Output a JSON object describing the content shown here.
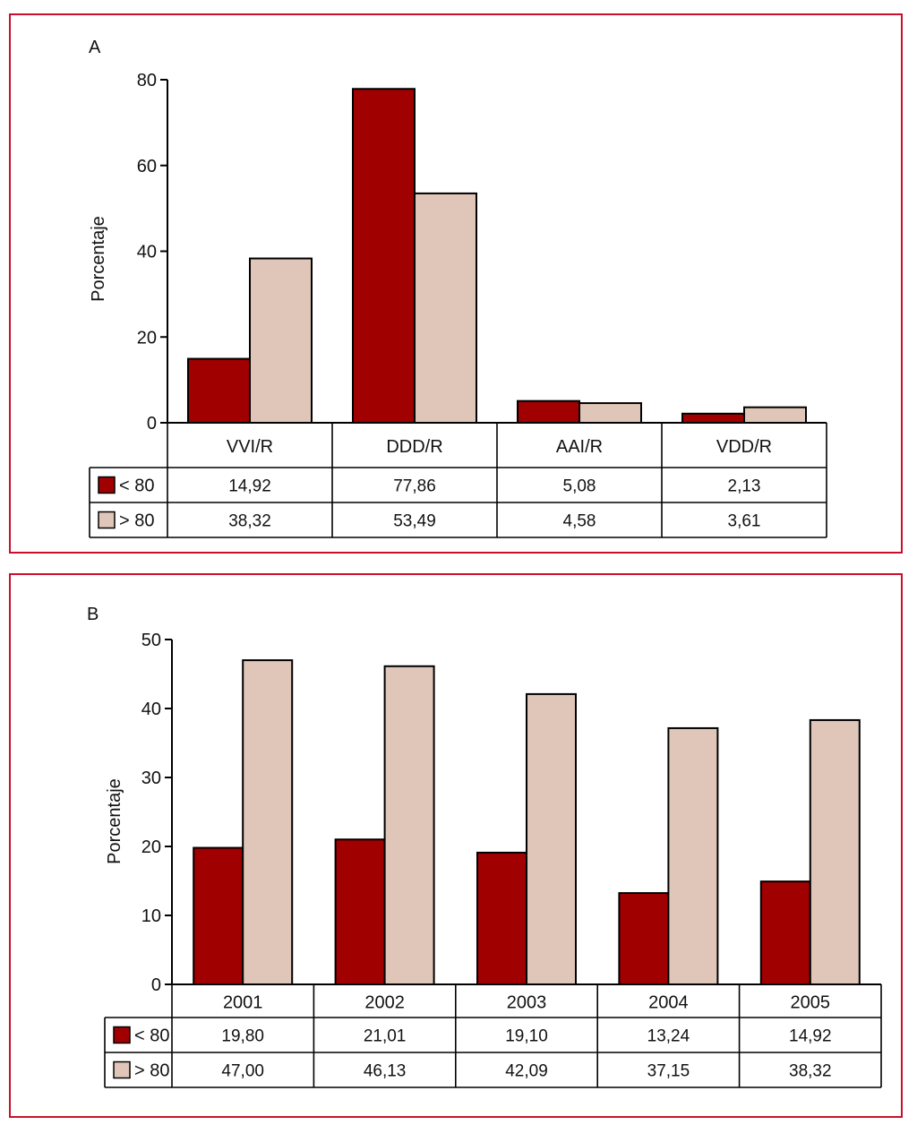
{
  "colors": {
    "frame": "#c8102e",
    "under80": "#a00000",
    "over80": "#dfc6b8",
    "outline": "#000000"
  },
  "chart_data": [
    {
      "panel": "A",
      "type": "bar",
      "title": "A",
      "xlabel": "",
      "ylabel": "Porcentaje",
      "ylim": [
        0,
        80
      ],
      "yticks": [
        "0",
        "20",
        "40",
        "60",
        "80"
      ],
      "categories": [
        "VVI/R",
        "DDD/R",
        "AAI/R",
        "VDD/R"
      ],
      "series": [
        {
          "name": "< 80",
          "values": [
            14.92,
            77.86,
            5.08,
            2.13
          ],
          "labels": [
            "14,92",
            "77,86",
            "5,08",
            "2,13"
          ],
          "color": "#a00000"
        },
        {
          "name": "> 80",
          "values": [
            38.32,
            53.49,
            4.58,
            3.61
          ],
          "labels": [
            "38,32",
            "53,49",
            "4,58",
            "3,61"
          ],
          "color": "#dfc6b8"
        }
      ]
    },
    {
      "panel": "B",
      "type": "bar",
      "title": "B",
      "xlabel": "",
      "ylabel": "Porcentaje",
      "ylim": [
        0,
        50
      ],
      "yticks": [
        "0",
        "10",
        "20",
        "30",
        "40",
        "50"
      ],
      "categories": [
        "2001",
        "2002",
        "2003",
        "2004",
        "2005"
      ],
      "series": [
        {
          "name": "< 80",
          "values": [
            19.8,
            21.01,
            19.1,
            13.24,
            14.92
          ],
          "labels": [
            "19,80",
            "21,01",
            "19,10",
            "13,24",
            "14,92"
          ],
          "color": "#a00000"
        },
        {
          "name": "> 80",
          "values": [
            47.0,
            46.13,
            42.09,
            37.15,
            38.32
          ],
          "labels": [
            "47,00",
            "46,13",
            "42,09",
            "37,15",
            "38,32"
          ],
          "color": "#dfc6b8"
        }
      ]
    }
  ]
}
